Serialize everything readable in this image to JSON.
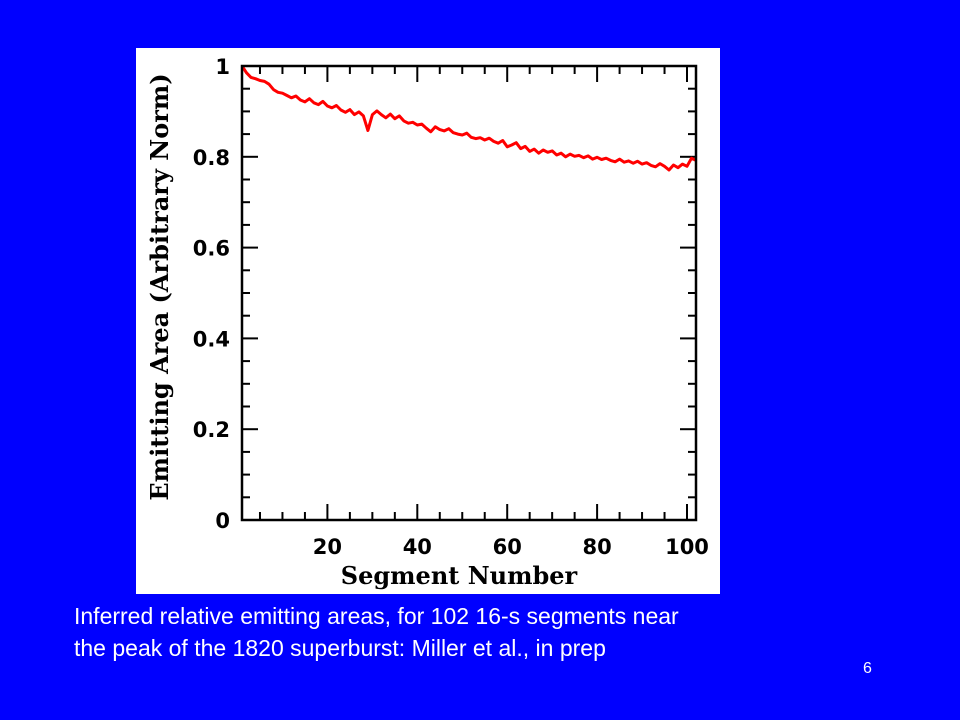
{
  "slide": {
    "background_color": "#0000ff",
    "caption_lines": [
      "Inferred relative emitting areas, for 102 16-s segments near",
      "the peak of the 1820 superburst:  Miller et al., in prep"
    ],
    "slide_number": "6"
  },
  "chart_data": {
    "type": "line",
    "title": "",
    "xlabel": "Segment Number",
    "ylabel": "Emitting Area (Arbitrary Norm)",
    "xlim": [
      1,
      102
    ],
    "ylim": [
      0,
      1
    ],
    "x_ticks": [
      20,
      40,
      60,
      80,
      100
    ],
    "y_ticks": [
      0,
      0.2,
      0.4,
      0.6,
      0.8,
      1
    ],
    "y_tick_labels": [
      "0",
      "0.2",
      "0.4",
      "0.6",
      "0.8",
      "1"
    ],
    "grid": false,
    "series": [
      {
        "color": "#ff0000",
        "x": [
          1,
          2,
          3,
          4,
          5,
          6,
          7,
          8,
          9,
          10,
          11,
          12,
          13,
          14,
          15,
          16,
          17,
          18,
          19,
          20,
          21,
          22,
          23,
          24,
          25,
          26,
          27,
          28,
          29,
          30,
          31,
          32,
          33,
          34,
          35,
          36,
          37,
          38,
          39,
          40,
          41,
          42,
          43,
          44,
          45,
          46,
          47,
          48,
          49,
          50,
          51,
          52,
          53,
          54,
          55,
          56,
          57,
          58,
          59,
          60,
          61,
          62,
          63,
          64,
          65,
          66,
          67,
          68,
          69,
          70,
          71,
          72,
          73,
          74,
          75,
          76,
          77,
          78,
          79,
          80,
          81,
          82,
          83,
          84,
          85,
          86,
          87,
          88,
          89,
          90,
          91,
          92,
          93,
          94,
          95,
          96,
          97,
          98,
          99,
          100,
          101,
          102
        ],
        "values": [
          1.0,
          0.985,
          0.975,
          0.972,
          0.968,
          0.966,
          0.96,
          0.948,
          0.942,
          0.94,
          0.935,
          0.93,
          0.934,
          0.925,
          0.921,
          0.928,
          0.919,
          0.915,
          0.922,
          0.912,
          0.908,
          0.913,
          0.903,
          0.898,
          0.904,
          0.893,
          0.899,
          0.89,
          0.858,
          0.893,
          0.901,
          0.893,
          0.886,
          0.894,
          0.884,
          0.89,
          0.879,
          0.874,
          0.876,
          0.87,
          0.872,
          0.863,
          0.855,
          0.866,
          0.86,
          0.857,
          0.862,
          0.853,
          0.85,
          0.848,
          0.852,
          0.843,
          0.84,
          0.842,
          0.837,
          0.841,
          0.834,
          0.83,
          0.836,
          0.822,
          0.826,
          0.831,
          0.818,
          0.823,
          0.812,
          0.817,
          0.808,
          0.815,
          0.81,
          0.813,
          0.804,
          0.808,
          0.8,
          0.806,
          0.801,
          0.803,
          0.798,
          0.802,
          0.795,
          0.799,
          0.794,
          0.797,
          0.792,
          0.789,
          0.795,
          0.788,
          0.791,
          0.786,
          0.79,
          0.784,
          0.787,
          0.781,
          0.778,
          0.785,
          0.779,
          0.771,
          0.782,
          0.776,
          0.784,
          0.779,
          0.797,
          0.792
        ]
      }
    ]
  }
}
